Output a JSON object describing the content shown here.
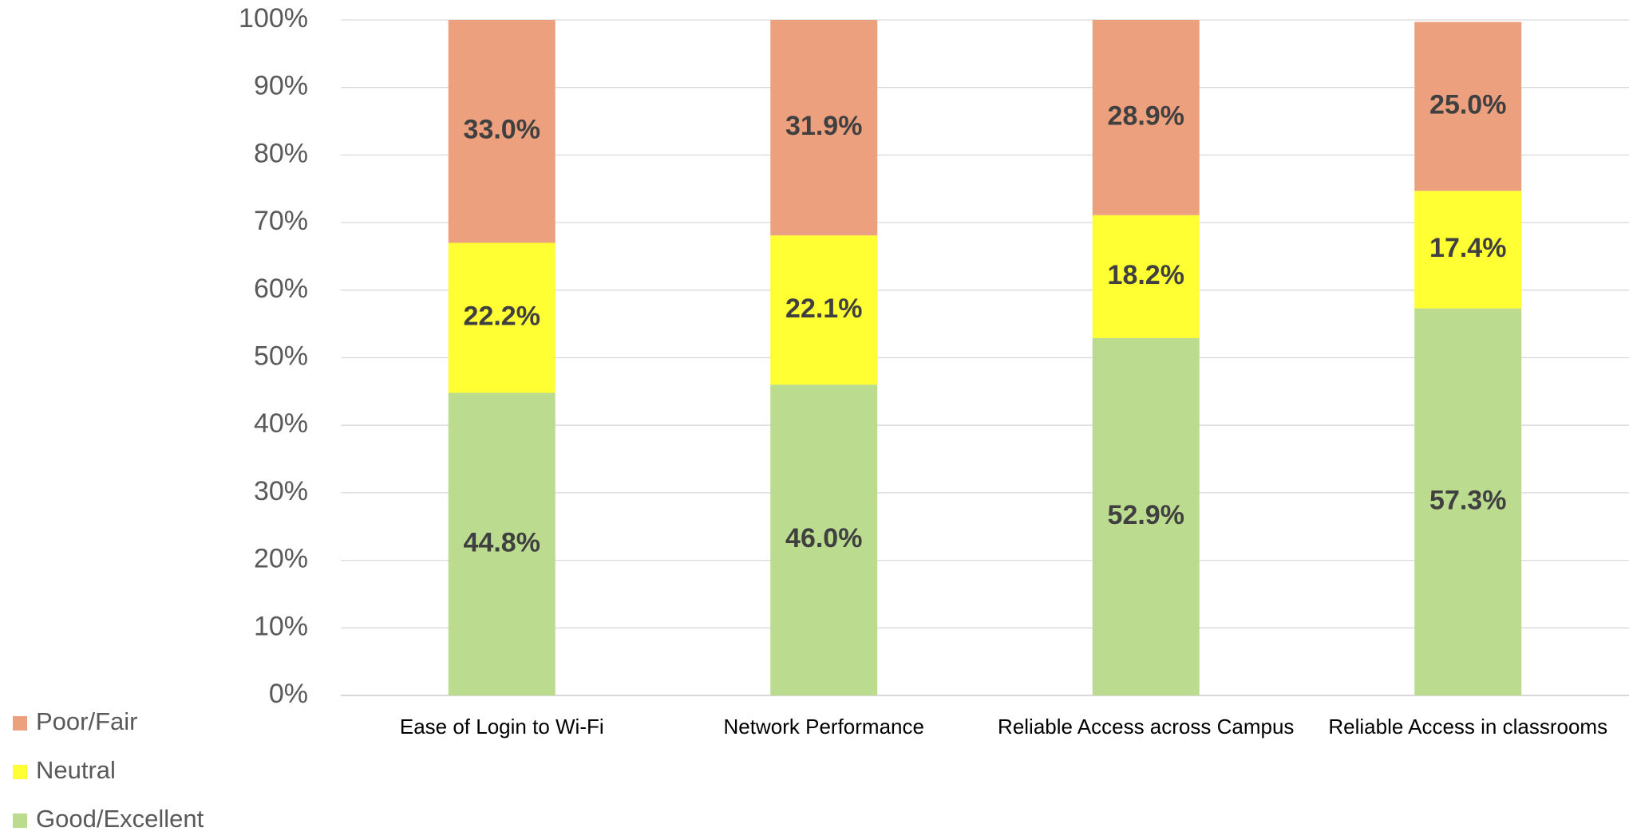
{
  "chart_data": {
    "type": "stacked_bar",
    "categories": [
      "Ease of Login to Wi-Fi",
      "Network Performance",
      "Reliable Access across Campus",
      "Reliable Access in classrooms"
    ],
    "series": [
      {
        "name": "Good/Excellent",
        "color": "#bbdb8f",
        "values": [
          44.8,
          46.0,
          52.9,
          57.3
        ],
        "value_labels": [
          "44.8%",
          "46.0%",
          "52.9%",
          "57.3%"
        ]
      },
      {
        "name": "Neutral",
        "color": "#ffff33",
        "values": [
          22.2,
          22.1,
          18.2,
          17.4
        ],
        "value_labels": [
          "22.2%",
          "22.1%",
          "18.2%",
          "17.4%"
        ]
      },
      {
        "name": "Poor/Fair",
        "color": "#eda07e",
        "values": [
          33.0,
          31.9,
          28.9,
          25.0
        ],
        "value_labels": [
          "33.0%",
          "31.9%",
          "28.9%",
          "25.0%"
        ]
      }
    ],
    "ylim": [
      0,
      100
    ],
    "yticks": [
      {
        "value": 0,
        "label": "0%"
      },
      {
        "value": 10,
        "label": "10%"
      },
      {
        "value": 20,
        "label": "20%"
      },
      {
        "value": 30,
        "label": "30%"
      },
      {
        "value": 40,
        "label": "40%"
      },
      {
        "value": 50,
        "label": "50%"
      },
      {
        "value": 60,
        "label": "60%"
      },
      {
        "value": 70,
        "label": "70%"
      },
      {
        "value": 80,
        "label": "80%"
      },
      {
        "value": 90,
        "label": "90%"
      },
      {
        "value": 100,
        "label": "100%"
      }
    ],
    "grid": true,
    "legend": "bottom-left"
  }
}
